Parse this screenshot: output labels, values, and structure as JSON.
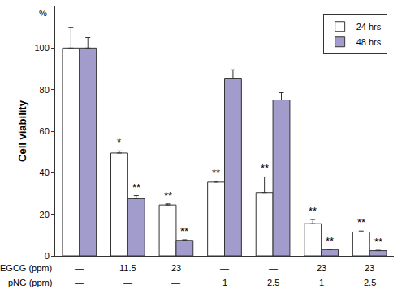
{
  "chart_data": {
    "type": "bar",
    "y_label": "Cell viability",
    "annotations": [
      "%"
    ],
    "categories": [
      null,
      null,
      null,
      null,
      null,
      null,
      null
    ],
    "series": [
      {
        "name": "24 hrs",
        "color": "#ffffff",
        "values": [
          100,
          49.5,
          24.5,
          35.5,
          30.5,
          15.5,
          11.5
        ],
        "errors": [
          10,
          1,
          0.5,
          0.3,
          7.5,
          2,
          0.5
        ],
        "significance": [
          null,
          "*",
          "**",
          "**",
          "**",
          "**",
          "**"
        ]
      },
      {
        "name": "48 hrs",
        "color": "#a19ccb",
        "values": [
          100,
          27.5,
          7.5,
          85.5,
          75,
          3,
          2.5
        ],
        "errors": [
          5,
          1.5,
          0.3,
          4,
          3.5,
          0.2,
          0.2
        ],
        "significance": [
          null,
          "**",
          "**",
          null,
          null,
          "**",
          "**"
        ]
      }
    ],
    "table": {
      "rows": [
        {
          "label": "EGCG (ppm)",
          "values": [
            "—",
            "11.5",
            "23",
            "—",
            "—",
            "23",
            "23"
          ]
        },
        {
          "label": "pNG (ppm)",
          "values": [
            "—",
            "—",
            "—",
            "1",
            "2.5",
            "1",
            "2.5"
          ]
        }
      ]
    },
    "ylim": [
      0,
      120
    ],
    "yticks": [
      0,
      20,
      40,
      60,
      80,
      100
    ],
    "grid": false,
    "legend": "top right"
  }
}
